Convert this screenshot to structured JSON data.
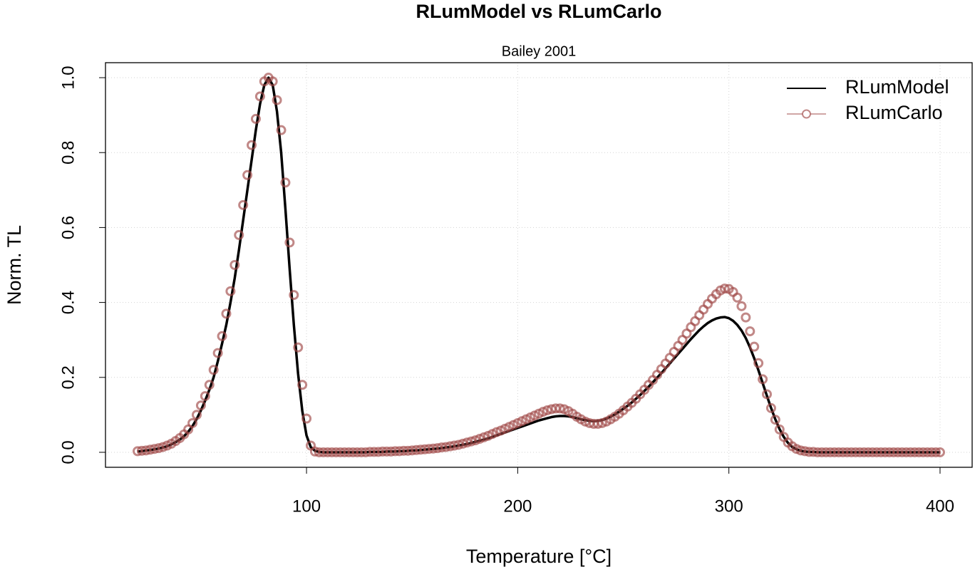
{
  "chart_data": {
    "type": "line",
    "title": "RLumModel vs RLumCarlo",
    "subtitle": "Bailey 2001",
    "x_label": "Temperature [°C]",
    "y_label": "Norm. TL",
    "x": [
      20,
      22,
      24,
      26,
      28,
      30,
      32,
      34,
      36,
      38,
      40,
      42,
      44,
      46,
      48,
      50,
      52,
      54,
      56,
      58,
      60,
      62,
      64,
      66,
      68,
      70,
      72,
      74,
      76,
      78,
      80,
      82,
      84,
      86,
      88,
      90,
      92,
      94,
      96,
      98,
      100,
      102,
      104,
      106,
      108,
      110,
      112,
      114,
      116,
      118,
      120,
      122,
      124,
      126,
      128,
      130,
      132,
      134,
      136,
      138,
      140,
      142,
      144,
      146,
      148,
      150,
      152,
      154,
      156,
      158,
      160,
      162,
      164,
      166,
      168,
      170,
      172,
      174,
      176,
      178,
      180,
      182,
      184,
      186,
      188,
      190,
      192,
      194,
      196,
      198,
      200,
      202,
      204,
      206,
      208,
      210,
      212,
      214,
      216,
      218,
      220,
      222,
      224,
      226,
      228,
      230,
      232,
      234,
      236,
      238,
      240,
      242,
      244,
      246,
      248,
      250,
      252,
      254,
      256,
      258,
      260,
      262,
      264,
      266,
      268,
      270,
      272,
      274,
      276,
      278,
      280,
      282,
      284,
      286,
      288,
      290,
      292,
      294,
      296,
      298,
      300,
      302,
      304,
      306,
      308,
      310,
      312,
      314,
      316,
      318,
      320,
      322,
      324,
      326,
      328,
      330,
      332,
      334,
      336,
      338,
      340,
      342,
      344,
      346,
      348,
      350,
      352,
      354,
      356,
      358,
      360,
      362,
      364,
      366,
      368,
      370,
      372,
      374,
      376,
      378,
      380,
      382,
      384,
      386,
      388,
      390,
      392,
      394,
      396,
      398,
      400
    ],
    "series": [
      {
        "name": "RLumModel",
        "color": "#000000",
        "marker": "line",
        "values": [
          0.002,
          0.003,
          0.005,
          0.006,
          0.008,
          0.01,
          0.013,
          0.016,
          0.021,
          0.027,
          0.034,
          0.043,
          0.055,
          0.07,
          0.089,
          0.112,
          0.138,
          0.167,
          0.2,
          0.243,
          0.29,
          0.34,
          0.4,
          0.465,
          0.54,
          0.62,
          0.7,
          0.78,
          0.86,
          0.93,
          0.98,
          1.0,
          0.98,
          0.91,
          0.8,
          0.65,
          0.49,
          0.34,
          0.21,
          0.11,
          0.045,
          0.014,
          0.004,
          0.001,
          0,
          0,
          0,
          0,
          0,
          0,
          0,
          0,
          0,
          0,
          0,
          0.001,
          0.001,
          0.001,
          0.001,
          0.002,
          0.002,
          0.002,
          0.003,
          0.003,
          0.004,
          0.005,
          0.005,
          0.006,
          0.007,
          0.008,
          0.009,
          0.01,
          0.011,
          0.013,
          0.014,
          0.016,
          0.018,
          0.02,
          0.022,
          0.025,
          0.028,
          0.031,
          0.034,
          0.037,
          0.041,
          0.045,
          0.049,
          0.053,
          0.057,
          0.061,
          0.065,
          0.069,
          0.073,
          0.077,
          0.081,
          0.085,
          0.088,
          0.091,
          0.094,
          0.096,
          0.097,
          0.097,
          0.096,
          0.094,
          0.091,
          0.088,
          0.086,
          0.084,
          0.083,
          0.084,
          0.086,
          0.09,
          0.095,
          0.101,
          0.108,
          0.116,
          0.124,
          0.133,
          0.143,
          0.153,
          0.164,
          0.175,
          0.187,
          0.199,
          0.211,
          0.224,
          0.237,
          0.25,
          0.263,
          0.276,
          0.289,
          0.302,
          0.314,
          0.326,
          0.336,
          0.345,
          0.352,
          0.357,
          0.36,
          0.361,
          0.358,
          0.351,
          0.34,
          0.325,
          0.305,
          0.28,
          0.251,
          0.219,
          0.185,
          0.151,
          0.118,
          0.088,
          0.062,
          0.041,
          0.025,
          0.014,
          0.008,
          0.004,
          0.002,
          0.001,
          0.001,
          0,
          0,
          0,
          0,
          0,
          0,
          0,
          0,
          0,
          0,
          0,
          0,
          0,
          0,
          0,
          0,
          0,
          0,
          0,
          0,
          0,
          0,
          0,
          0,
          0,
          0,
          0,
          0,
          0,
          0
        ]
      },
      {
        "name": "RLumCarlo",
        "color": "#a04846",
        "marker": "circle",
        "values": [
          0.003,
          0.004,
          0.005,
          0.007,
          0.009,
          0.011,
          0.014,
          0.018,
          0.023,
          0.03,
          0.038,
          0.048,
          0.061,
          0.078,
          0.1,
          0.125,
          0.15,
          0.18,
          0.22,
          0.265,
          0.31,
          0.37,
          0.43,
          0.5,
          0.58,
          0.66,
          0.74,
          0.82,
          0.89,
          0.95,
          0.99,
          1.0,
          0.99,
          0.94,
          0.86,
          0.72,
          0.56,
          0.42,
          0.28,
          0.18,
          0.09,
          0.018,
          0.002,
          0,
          0,
          0,
          0,
          0,
          0,
          0,
          0,
          0,
          0,
          0,
          0,
          0.001,
          0.001,
          0.001,
          0.002,
          0.002,
          0.002,
          0.003,
          0.003,
          0.004,
          0.004,
          0.005,
          0.006,
          0.007,
          0.008,
          0.009,
          0.01,
          0.011,
          0.013,
          0.014,
          0.016,
          0.018,
          0.02,
          0.023,
          0.026,
          0.029,
          0.032,
          0.036,
          0.04,
          0.044,
          0.049,
          0.054,
          0.058,
          0.063,
          0.068,
          0.073,
          0.078,
          0.083,
          0.088,
          0.093,
          0.098,
          0.103,
          0.108,
          0.112,
          0.115,
          0.117,
          0.117,
          0.115,
          0.11,
          0.103,
          0.095,
          0.088,
          0.082,
          0.078,
          0.076,
          0.076,
          0.078,
          0.082,
          0.088,
          0.095,
          0.103,
          0.112,
          0.122,
          0.132,
          0.143,
          0.155,
          0.167,
          0.18,
          0.193,
          0.207,
          0.222,
          0.237,
          0.252,
          0.268,
          0.284,
          0.3,
          0.317,
          0.334,
          0.35,
          0.366,
          0.381,
          0.396,
          0.41,
          0.422,
          0.432,
          0.437,
          0.436,
          0.428,
          0.413,
          0.39,
          0.36,
          0.323,
          0.282,
          0.238,
          0.195,
          0.155,
          0.118,
          0.087,
          0.061,
          0.041,
          0.026,
          0.016,
          0.009,
          0.005,
          0.003,
          0.001,
          0.001,
          0,
          0,
          0,
          0,
          0,
          0,
          0,
          0,
          0,
          0,
          0,
          0,
          0,
          0,
          0,
          0,
          0,
          0,
          0,
          0,
          0,
          0,
          0,
          0,
          0,
          0,
          0,
          0,
          0,
          0
        ]
      }
    ],
    "xlim": [
      4.8,
      415.2
    ],
    "ylim": [
      -0.04,
      1.04
    ],
    "xticks": [
      100,
      200,
      300,
      400
    ],
    "yticks": [
      {
        "value": 0,
        "label": "0.0"
      },
      0.2,
      0.4,
      0.6,
      0.8,
      {
        "value": 1,
        "label": "1.0"
      }
    ],
    "grid": true,
    "legend": "top-right"
  }
}
